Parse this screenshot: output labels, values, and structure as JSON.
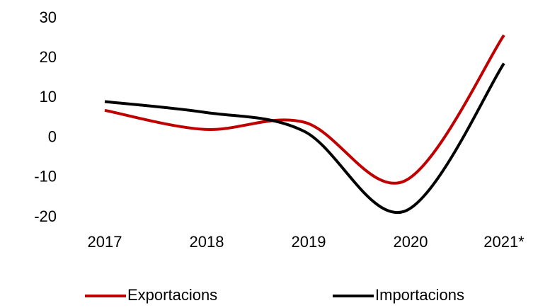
{
  "chart_data": {
    "type": "line",
    "categories": [
      "2017",
      "2018",
      "2019",
      "2020",
      "2021*"
    ],
    "series": [
      {
        "name": "Exportacions",
        "color": "#c00000",
        "values": [
          6.9,
          2.1,
          3.9,
          -10.9,
          25.8
        ]
      },
      {
        "name": "Importacions",
        "color": "#000000",
        "values": [
          9.1,
          6.4,
          1.6,
          -18.5,
          18.7
        ]
      }
    ],
    "ylim": [
      -20,
      30
    ],
    "yticks": [
      -20,
      -10,
      0,
      10,
      20,
      30
    ],
    "grid": false,
    "legend": "bottom"
  }
}
